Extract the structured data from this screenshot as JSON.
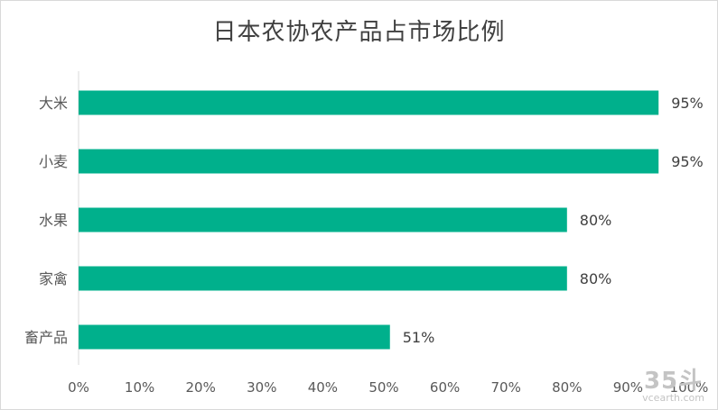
{
  "chart_data": {
    "type": "bar",
    "orientation": "horizontal",
    "title": "日本农协农产品占市场比例",
    "categories": [
      "大米",
      "小麦",
      "水果",
      "家禽",
      "畜产品"
    ],
    "values": [
      95,
      95,
      80,
      80,
      51
    ],
    "value_labels": [
      "95%",
      "95%",
      "80%",
      "80%",
      "51%"
    ],
    "xlim": [
      0,
      100
    ],
    "x_ticks": [
      "0%",
      "10%",
      "20%",
      "30%",
      "40%",
      "50%",
      "60%",
      "70%",
      "80%",
      "90%",
      "100%"
    ],
    "bar_color": "#00b08c",
    "grid": false,
    "legend": "none"
  },
  "watermark": {
    "logo": "35斗",
    "url": "vcearth.com"
  }
}
